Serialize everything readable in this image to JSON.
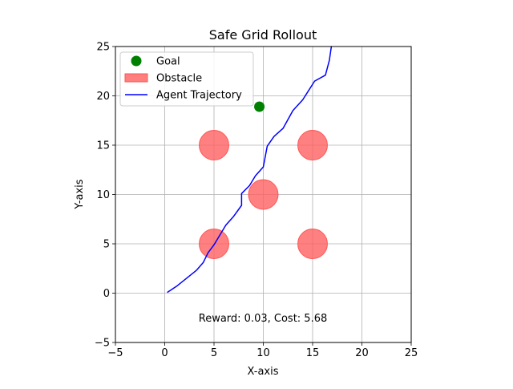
{
  "chart_data": {
    "type": "scatter",
    "title": "Safe Grid Rollout",
    "xlabel": "X-axis",
    "ylabel": "Y-axis",
    "xlim": [
      -5,
      25
    ],
    "ylim": [
      -5,
      25
    ],
    "xticks": [
      -5,
      0,
      5,
      10,
      15,
      20,
      25
    ],
    "yticks": [
      -5,
      0,
      5,
      10,
      15,
      20,
      25
    ],
    "grid": true,
    "legend_position": "top-left",
    "legend": [
      {
        "label": "Goal",
        "kind": "marker",
        "color": "#008000"
      },
      {
        "label": "Obstacle",
        "kind": "patch",
        "color": "#ff7070"
      },
      {
        "label": "Agent Trajectory",
        "kind": "line",
        "color": "#0000ff"
      }
    ],
    "goal": {
      "x": 9.6,
      "y": 18.9,
      "color": "#008000"
    },
    "obstacles": [
      {
        "x": 5,
        "y": 5,
        "r": 1.5
      },
      {
        "x": 15,
        "y": 5,
        "r": 1.5
      },
      {
        "x": 10,
        "y": 10,
        "r": 1.5
      },
      {
        "x": 5,
        "y": 15,
        "r": 1.5
      },
      {
        "x": 15,
        "y": 15,
        "r": 1.5
      }
    ],
    "obstacle_color": "#ff6060",
    "trajectory_color": "#0000ff",
    "trajectory": [
      {
        "x": 0.3,
        "y": 0.1
      },
      {
        "x": 1.2,
        "y": 0.7
      },
      {
        "x": 2.2,
        "y": 1.5
      },
      {
        "x": 3.2,
        "y": 2.3
      },
      {
        "x": 3.9,
        "y": 3.1
      },
      {
        "x": 4.4,
        "y": 4.1
      },
      {
        "x": 5.0,
        "y": 4.9
      },
      {
        "x": 5.6,
        "y": 5.9
      },
      {
        "x": 6.2,
        "y": 6.9
      },
      {
        "x": 7.0,
        "y": 7.8
      },
      {
        "x": 7.8,
        "y": 8.9
      },
      {
        "x": 7.8,
        "y": 10.1
      },
      {
        "x": 8.6,
        "y": 10.9
      },
      {
        "x": 9.2,
        "y": 11.9
      },
      {
        "x": 10.0,
        "y": 12.8
      },
      {
        "x": 10.4,
        "y": 14.9
      },
      {
        "x": 11.1,
        "y": 15.9
      },
      {
        "x": 12.0,
        "y": 16.7
      },
      {
        "x": 13.0,
        "y": 18.5
      },
      {
        "x": 14.0,
        "y": 19.6
      },
      {
        "x": 15.2,
        "y": 21.5
      },
      {
        "x": 16.3,
        "y": 22.1
      },
      {
        "x": 16.7,
        "y": 23.6
      },
      {
        "x": 16.9,
        "y": 25.0
      }
    ],
    "annotation": "Reward: 0.03, Cost: 5.68"
  }
}
